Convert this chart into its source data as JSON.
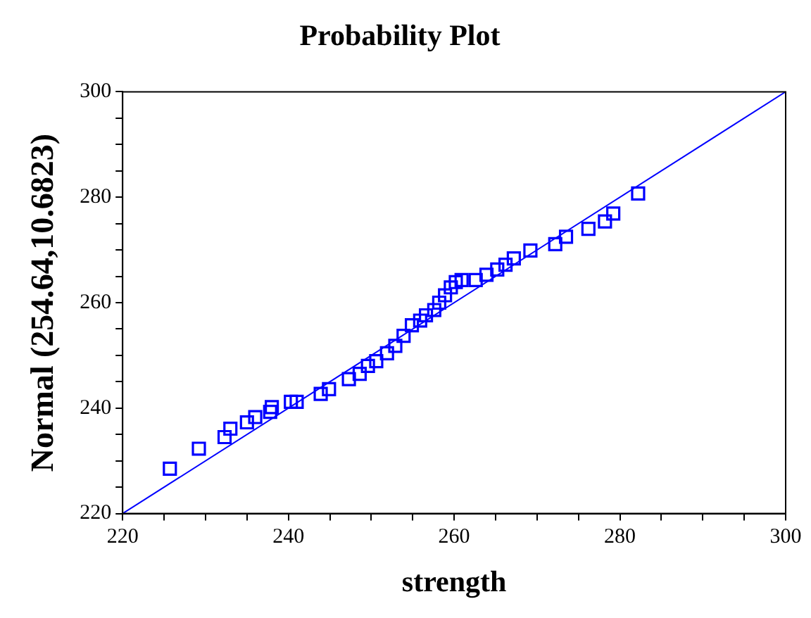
{
  "chart_data": {
    "type": "scatter",
    "title": "Probability Plot",
    "xlabel": "strength",
    "ylabel": "Normal (254.64,10.6823)",
    "xlim": [
      220,
      300
    ],
    "ylim": [
      220,
      300
    ],
    "xticks": [
      220,
      {
        "value": 225,
        "label": null
      },
      {
        "value": 230,
        "label": null
      },
      {
        "value": 235,
        "label": null
      },
      240,
      {
        "value": 245,
        "label": null
      },
      {
        "value": 250,
        "label": null
      },
      {
        "value": 255,
        "label": null
      },
      260,
      {
        "value": 265,
        "label": null
      },
      {
        "value": 270,
        "label": null
      },
      {
        "value": 275,
        "label": null
      },
      280,
      {
        "value": 285,
        "label": null
      },
      {
        "value": 290,
        "label": null
      },
      {
        "value": 295,
        "label": null
      },
      300
    ],
    "yticks": [
      220,
      {
        "value": 225,
        "label": null
      },
      {
        "value": 230,
        "label": null
      },
      {
        "value": 235,
        "label": null
      },
      240,
      {
        "value": 245,
        "label": null
      },
      {
        "value": 250,
        "label": null
      },
      {
        "value": 255,
        "label": null
      },
      260,
      {
        "value": 265,
        "label": null
      },
      {
        "value": 270,
        "label": null
      },
      {
        "value": 275,
        "label": null
      },
      280,
      {
        "value": 285,
        "label": null
      },
      {
        "value": 290,
        "label": null
      },
      {
        "value": 295,
        "label": null
      },
      300
    ],
    "grid": false,
    "legend": false,
    "series": [
      {
        "color": "#0000ff",
        "marker": "square",
        "x": [
          225.7,
          229.2,
          232.3,
          233.0,
          235.0,
          236.0,
          237.8,
          238.0,
          240.3,
          241.0,
          243.9,
          244.9,
          247.3,
          248.6,
          249.6,
          250.6,
          251.9,
          252.9,
          253.9,
          254.9,
          255.9,
          256.6,
          257.6,
          258.2,
          258.9,
          259.6,
          260.2,
          260.9,
          262.6,
          263.9,
          265.2,
          266.2,
          267.2,
          269.2,
          272.2,
          273.5,
          276.2,
          278.2,
          279.2,
          282.2
        ],
        "values": [
          228.5,
          232.3,
          234.5,
          236.1,
          237.3,
          238.3,
          239.3,
          240.2,
          241.2,
          241.2,
          242.7,
          243.6,
          245.5,
          246.5,
          248.0,
          248.9,
          250.4,
          251.8,
          253.7,
          255.7,
          256.6,
          257.6,
          258.6,
          260.0,
          261.4,
          262.9,
          263.9,
          264.3,
          264.3,
          265.3,
          266.3,
          267.2,
          268.4,
          269.9,
          271.1,
          272.5,
          274.0,
          275.4,
          276.9,
          280.7
        ]
      },
      {
        "type": "line",
        "color": "#0000ff",
        "marker": "none",
        "line_style": "solid",
        "x": [
          220,
          300
        ],
        "values": [
          220,
          300
        ]
      }
    ]
  }
}
